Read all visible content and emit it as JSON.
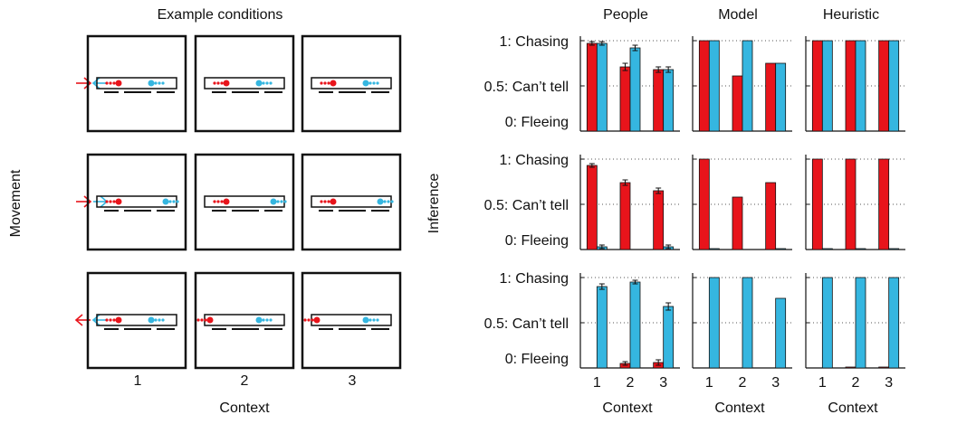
{
  "diagram": {
    "title": "Example conditions",
    "y_label": "Movement",
    "x_label": "Context",
    "columns": [
      "1",
      "2",
      "3"
    ]
  },
  "chart_data": [
    {
      "type": "bar",
      "title": "People",
      "x_label": "Context",
      "y_label": "Inference",
      "categories": [
        "1",
        "2",
        "3"
      ],
      "ylim": [
        0,
        1.05
      ],
      "yticks": [
        {
          "value": 0,
          "label": "0: Fleeing"
        },
        {
          "value": 0.5,
          "label": "0.5: Can’t tell"
        },
        {
          "value": 1,
          "label": "1: Chasing"
        }
      ],
      "panels": [
        {
          "series": [
            {
              "color": "#e8141b",
              "values": [
                0.97,
                0.71,
                0.68
              ],
              "errors": [
                0.02,
                0.04,
                0.03
              ]
            },
            {
              "color": "#35b6e0",
              "values": [
                0.97,
                0.92,
                0.68
              ],
              "errors": [
                0.02,
                0.03,
                0.03
              ]
            }
          ]
        },
        {
          "series": [
            {
              "color": "#e8141b",
              "values": [
                0.93,
                0.74,
                0.65
              ],
              "errors": [
                0.02,
                0.03,
                0.03
              ]
            },
            {
              "color": "#35b6e0",
              "values": [
                0.03,
                0,
                0.03
              ],
              "errors": [
                0.02,
                0,
                0.02
              ]
            }
          ]
        },
        {
          "series": [
            {
              "color": "#e8141b",
              "values": [
                0,
                0.05,
                0.06
              ],
              "errors": [
                0,
                0.02,
                0.03
              ]
            },
            {
              "color": "#35b6e0",
              "values": [
                0.9,
                0.95,
                0.68
              ],
              "errors": [
                0.03,
                0.02,
                0.04
              ]
            }
          ]
        }
      ]
    },
    {
      "type": "bar",
      "title": "Model",
      "x_label": "Context",
      "categories": [
        "1",
        "2",
        "3"
      ],
      "ylim": [
        0,
        1.05
      ],
      "yticks": [
        0,
        0.5,
        1
      ],
      "panels": [
        {
          "series": [
            {
              "color": "#e8141b",
              "values": [
                1,
                0.61,
                0.75
              ]
            },
            {
              "color": "#35b6e0",
              "values": [
                1,
                1,
                0.75
              ]
            }
          ]
        },
        {
          "series": [
            {
              "color": "#e8141b",
              "values": [
                1,
                0.58,
                0.74
              ]
            },
            {
              "color": "#35b6e0",
              "values": [
                0.01,
                0,
                0.01
              ]
            }
          ]
        },
        {
          "series": [
            {
              "color": "#e8141b",
              "values": [
                0,
                0,
                0
              ]
            },
            {
              "color": "#35b6e0",
              "values": [
                1,
                1,
                0.77
              ]
            }
          ]
        }
      ]
    },
    {
      "type": "bar",
      "title": "Heuristic",
      "x_label": "Context",
      "categories": [
        "1",
        "2",
        "3"
      ],
      "ylim": [
        0,
        1.05
      ],
      "yticks": [
        0,
        0.5,
        1
      ],
      "panels": [
        {
          "series": [
            {
              "color": "#e8141b",
              "values": [
                1,
                1,
                1
              ]
            },
            {
              "color": "#35b6e0",
              "values": [
                1,
                1,
                1
              ]
            }
          ]
        },
        {
          "series": [
            {
              "color": "#e8141b",
              "values": [
                1,
                1,
                1
              ]
            },
            {
              "color": "#35b6e0",
              "values": [
                0.01,
                0.01,
                0.01
              ]
            }
          ]
        },
        {
          "series": [
            {
              "color": "#e8141b",
              "values": [
                0,
                0.01,
                0.01
              ]
            },
            {
              "color": "#35b6e0",
              "values": [
                1,
                1,
                1
              ]
            }
          ]
        }
      ]
    }
  ]
}
